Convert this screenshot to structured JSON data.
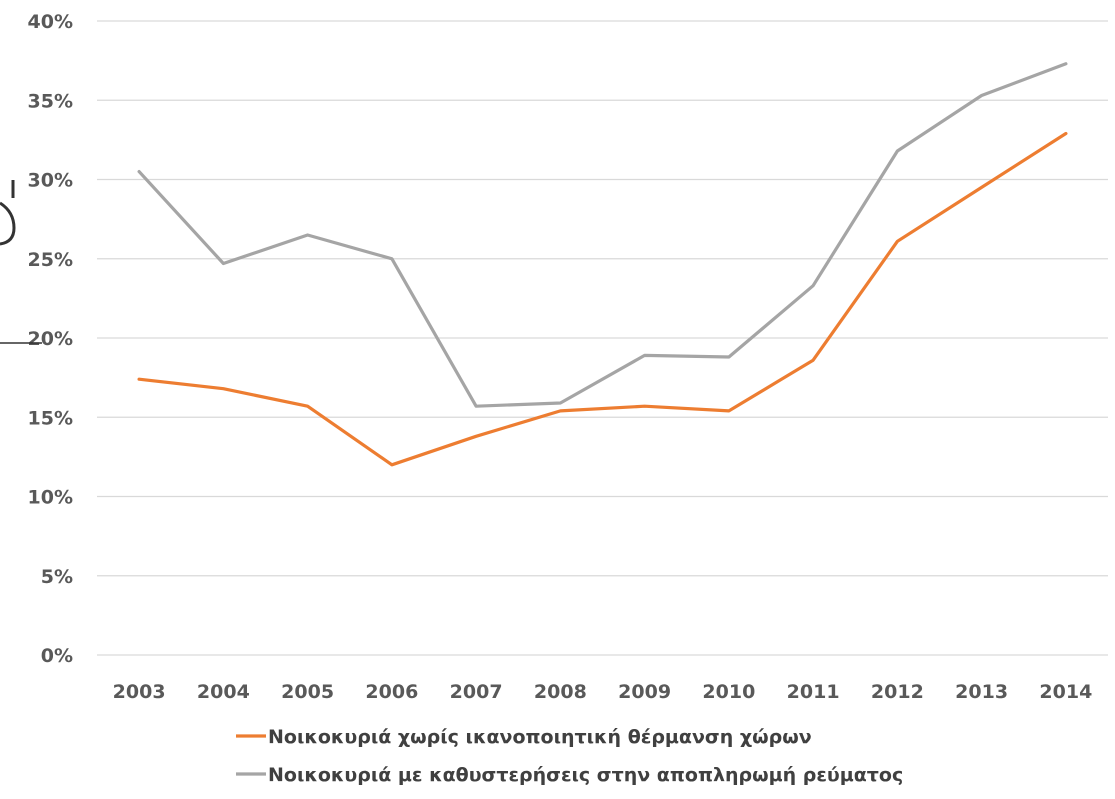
{
  "chart_data": {
    "type": "line",
    "x": [
      "2003",
      "2004",
      "2005",
      "2006",
      "2007",
      "2008",
      "2009",
      "2010",
      "2011",
      "2012",
      "2013",
      "2014"
    ],
    "ylim": [
      0,
      40
    ],
    "y_ticks": [
      "0%",
      "5%",
      "10%",
      "15%",
      "20%",
      "25%",
      "30%",
      "35%",
      "40%"
    ],
    "grid": true,
    "legend_position": "bottom",
    "series": [
      {
        "name": "Νοικοκυριά χωρίς ικανοποιητική θέρμανση χώρων",
        "color": "#ed7d31",
        "values": [
          17.4,
          16.8,
          15.7,
          12.0,
          13.8,
          15.4,
          15.7,
          15.4,
          18.6,
          26.1,
          29.5,
          32.9
        ]
      },
      {
        "name": "Νοικοκυριά με καθυστερήσεις στην αποπληρωμή ρεύματος",
        "color": "#a5a5a5",
        "values": [
          30.5,
          24.7,
          26.5,
          25.0,
          15.7,
          15.9,
          18.9,
          18.8,
          23.3,
          31.8,
          35.3,
          37.3
        ]
      }
    ]
  }
}
